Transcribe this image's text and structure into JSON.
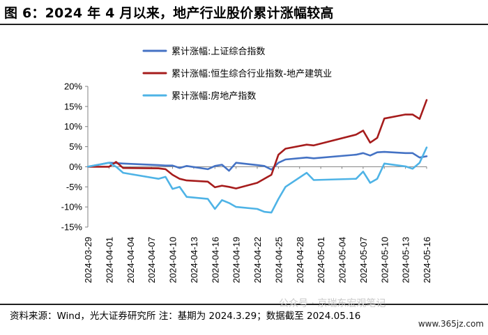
{
  "title": "图 6：2024 年 4 月以来，地产行业股价累计涨幅较高",
  "source": "资料来源：Wind，光大证券研究所    注：基期为 2024.3.29；数据截至 2024.05.16",
  "watermark": "公众号 · 京瑞东宏观笔记",
  "site": "www.365jz.com",
  "chart_data": {
    "type": "line",
    "ylim": [
      -15,
      20
    ],
    "y_ticks": [
      "20%",
      "15%",
      "10%",
      "5%",
      "0%",
      "-5%",
      "-10%",
      "-15%"
    ],
    "x_ticks": [
      "2024-03-29",
      "2024-04-01",
      "2024-04-04",
      "2024-04-07",
      "2024-04-10",
      "2024-04-13",
      "2024-04-16",
      "2024-04-19",
      "2024-04-22",
      "2024-04-25",
      "2024-04-28",
      "2024-05-01",
      "2024-05-04",
      "2024-05-07",
      "2024-05-10",
      "2024-05-13",
      "2024-05-16"
    ],
    "x": [
      "2024-03-29",
      "2024-04-01",
      "2024-04-02",
      "2024-04-03",
      "2024-04-08",
      "2024-04-09",
      "2024-04-10",
      "2024-04-11",
      "2024-04-12",
      "2024-04-15",
      "2024-04-16",
      "2024-04-17",
      "2024-04-18",
      "2024-04-19",
      "2024-04-22",
      "2024-04-23",
      "2024-04-24",
      "2024-04-25",
      "2024-04-26",
      "2024-04-29",
      "2024-04-30",
      "2024-05-06",
      "2024-05-07",
      "2024-05-08",
      "2024-05-09",
      "2024-05-10",
      "2024-05-13",
      "2024-05-14",
      "2024-05-15",
      "2024-05-16"
    ],
    "series": [
      {
        "name": "累计涨幅:上证综合指数",
        "color": "#4472C4",
        "values": [
          0,
          1.0,
          0.9,
          0.8,
          0.4,
          0.3,
          0.3,
          -0.3,
          0.2,
          -0.6,
          0.2,
          0.5,
          -1.0,
          1.0,
          0.4,
          0.2,
          -0.7,
          1.0,
          1.8,
          2.3,
          2.1,
          3.0,
          3.4,
          2.8,
          3.6,
          3.7,
          3.4,
          3.4,
          2.3,
          2.6
        ]
      },
      {
        "name": "累计涨幅:恒生综合行业指数-地产建筑业",
        "color": "#A61C1C",
        "values": [
          0,
          0,
          1.2,
          -0.3,
          -0.4,
          -0.6,
          -2.0,
          -3.0,
          -3.4,
          -3.7,
          -5.1,
          -4.7,
          -5.0,
          -5.4,
          -4.0,
          -3.0,
          -2.0,
          3.0,
          4.5,
          5.5,
          5.3,
          8.0,
          9.0,
          6.0,
          7.2,
          12.0,
          13.0,
          13.0,
          11.9,
          16.6
        ]
      },
      {
        "name": "累计涨幅:房地产指数",
        "color": "#4EB3E6",
        "values": [
          0,
          1.0,
          0,
          -1.5,
          -3.0,
          -2.5,
          -5.5,
          -5.0,
          -7.5,
          -8.0,
          -10.5,
          -8.3,
          -9.0,
          -10.0,
          -10.5,
          -11.2,
          -11.4,
          -8.0,
          -5.0,
          -1.5,
          -3.3,
          -3.0,
          -1.2,
          -4.0,
          -3.0,
          0.8,
          0.1,
          -0.5,
          1.0,
          4.8
        ]
      }
    ],
    "legend_position": "top-center",
    "grid": false
  }
}
